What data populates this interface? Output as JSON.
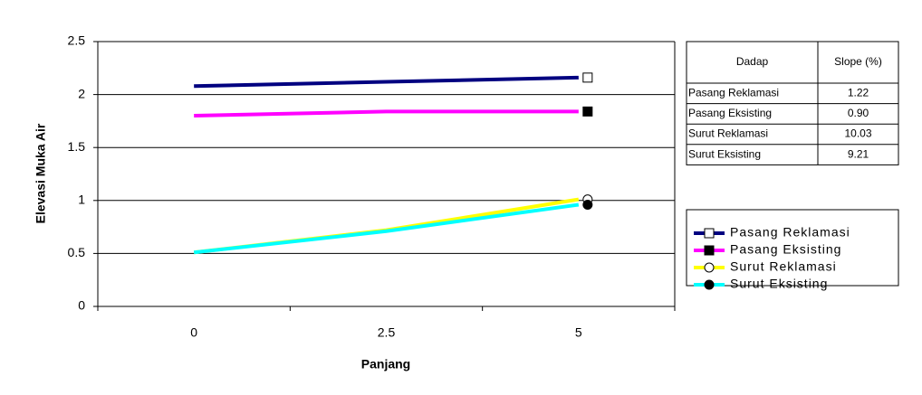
{
  "chart_data": {
    "type": "line",
    "x_label": "Panjang",
    "y_label": "Elevasi Muka Air",
    "categories": [
      "0",
      "2.5",
      "5"
    ],
    "series": [
      {
        "name": "Pasang Reklamasi",
        "color": "#000080",
        "marker": "square-open",
        "values": [
          2.08,
          2.12,
          2.16
        ]
      },
      {
        "name": "Pasang Eksisting",
        "color": "#ff00ff",
        "marker": "square",
        "values": [
          1.8,
          1.84,
          1.84
        ]
      },
      {
        "name": "Surut Reklamasi",
        "color": "#ffff00",
        "marker": "circle-open",
        "values": [
          0.51,
          0.72,
          1.01
        ]
      },
      {
        "name": "Surut Eksisting",
        "color": "#00ffff",
        "marker": "circle",
        "values": [
          0.51,
          0.71,
          0.96
        ]
      }
    ],
    "ylim": [
      0,
      2.5
    ],
    "yticks": [
      0,
      0.5,
      1,
      1.5,
      2,
      2.5
    ],
    "grid": true
  },
  "table": {
    "header": [
      "Dadap",
      "Slope (%)"
    ],
    "rows": [
      [
        "Pasang Reklamasi",
        "1.22"
      ],
      [
        "Pasang Eksisting",
        "0.90"
      ],
      [
        "Surut Reklamasi",
        "10.03"
      ],
      [
        "Surut Eksisting",
        "9.21"
      ]
    ]
  }
}
